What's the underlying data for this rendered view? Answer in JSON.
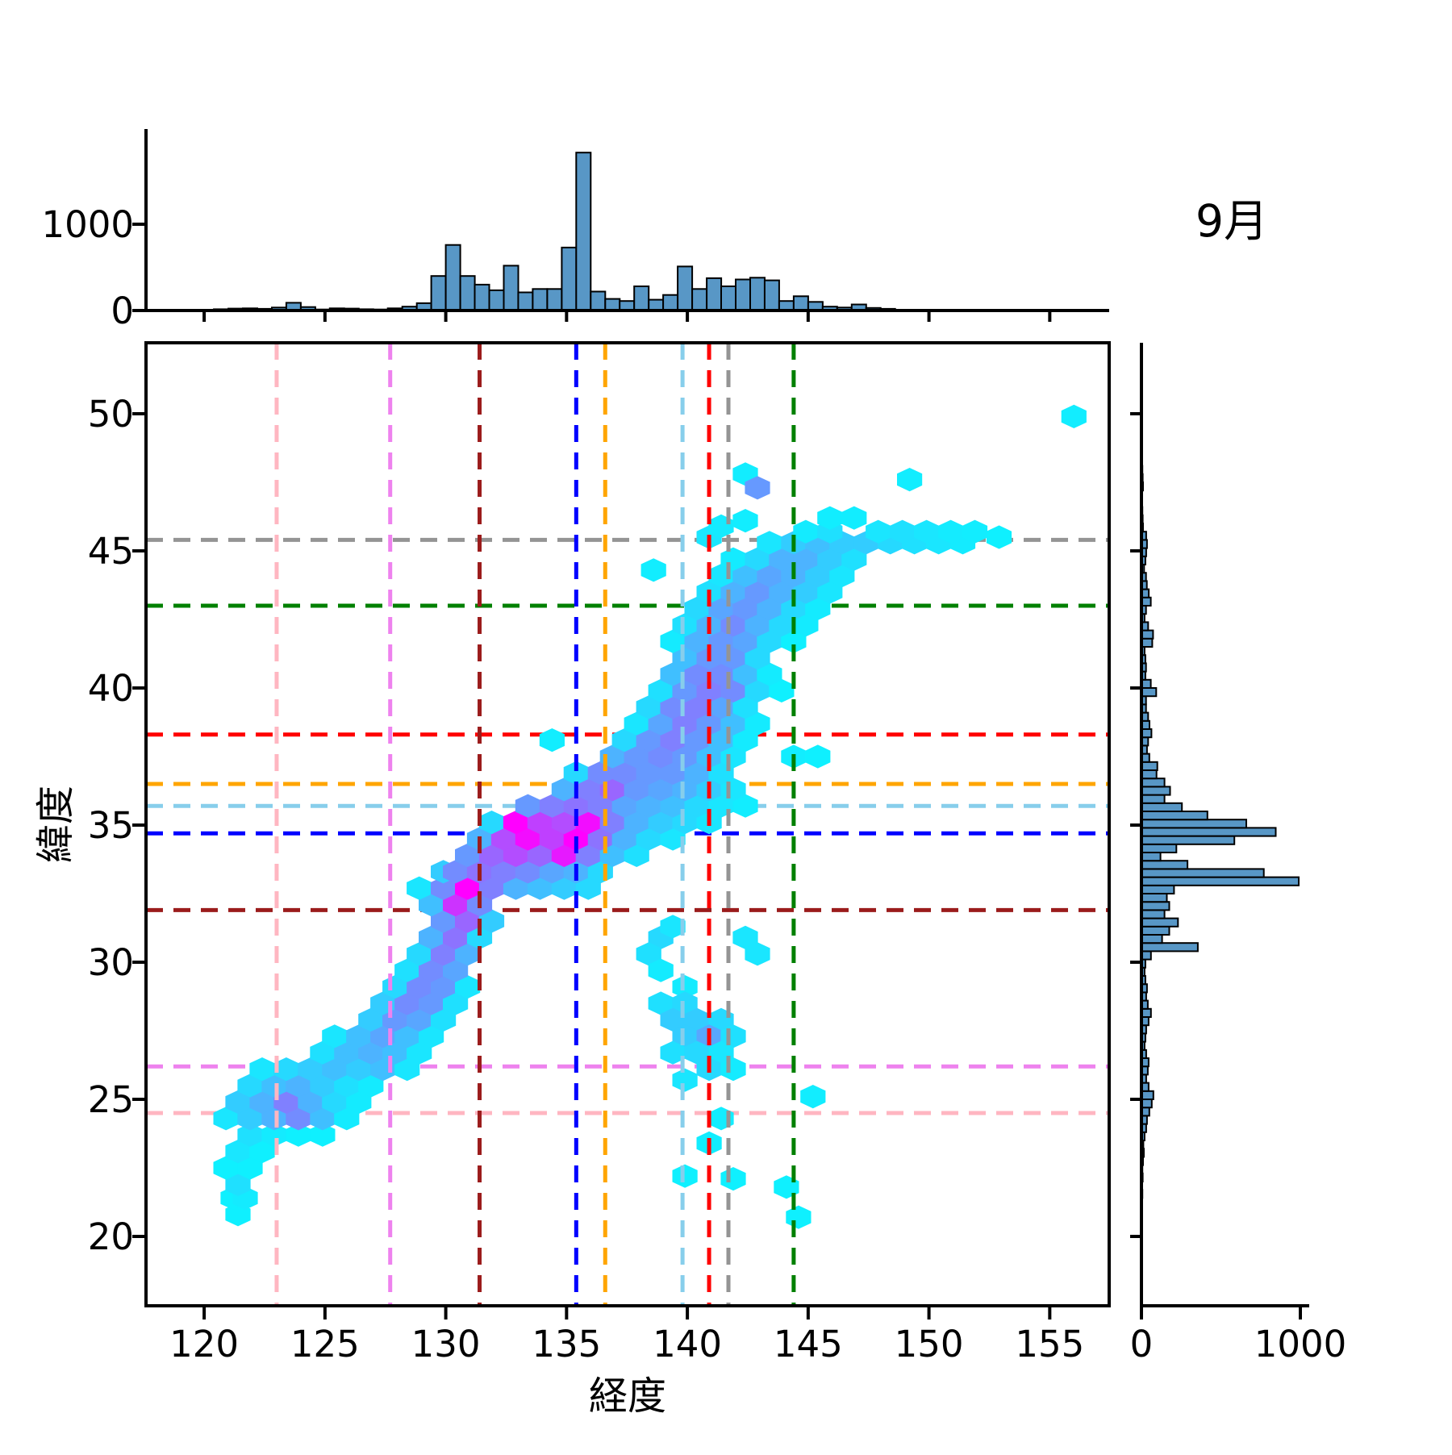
{
  "title": "9月",
  "axes": {
    "xlabel": "経度",
    "ylabel": "緯度"
  },
  "colors": {
    "hist_fill": "#5897C6",
    "hist_edge": "#000000",
    "spine": "#000000",
    "colormap": "cool"
  },
  "chart_data": {
    "type": "hexbin",
    "title": "9月",
    "xlabel": "経度",
    "ylabel": "緯度",
    "xlim": [
      117.6,
      157.45
    ],
    "ylim": [
      17.45,
      52.6
    ],
    "xticks": [
      120,
      125,
      130,
      135,
      140,
      145,
      150,
      155
    ],
    "yticks": [
      20,
      25,
      30,
      35,
      40,
      45,
      50
    ],
    "grid": false,
    "colormap": "cool",
    "hex_size": {
      "dlon": 1.0,
      "dlat": 0.615
    },
    "reference_lines": [
      {
        "id": "pink",
        "color": "#FFB6C1",
        "lon": 123.0,
        "lat": 24.5
      },
      {
        "id": "violet",
        "color": "#EE82EE",
        "lon": 127.7,
        "lat": 26.2
      },
      {
        "id": "darkred",
        "color": "#9B1C1C",
        "lon": 131.4,
        "lat": 31.9
      },
      {
        "id": "blue",
        "color": "#0000FF",
        "lon": 135.4,
        "lat": 34.7
      },
      {
        "id": "orange",
        "color": "#FFA500",
        "lon": 136.6,
        "lat": 36.5
      },
      {
        "id": "skyblue",
        "color": "#87CEEB",
        "lon": 139.8,
        "lat": 35.7
      },
      {
        "id": "red",
        "color": "#FF0000",
        "lon": 140.9,
        "lat": 38.3
      },
      {
        "id": "gray",
        "color": "#949494",
        "lon": 141.7,
        "lat": 45.4
      },
      {
        "id": "green",
        "color": "#008000",
        "lon": 144.4,
        "lat": 43.0
      }
    ],
    "marginal_top": {
      "type": "bar",
      "bin_start": 120.4,
      "bin_width": 0.6,
      "yticks": [
        0,
        1000
      ],
      "values": [
        15,
        22,
        25,
        20,
        35,
        90,
        40,
        12,
        25,
        22,
        15,
        12,
        25,
        45,
        85,
        400,
        760,
        400,
        300,
        235,
        520,
        210,
        250,
        250,
        730,
        1830,
        220,
        135,
        110,
        280,
        125,
        180,
        510,
        250,
        375,
        280,
        360,
        380,
        350,
        110,
        165,
        100,
        45,
        35,
        70,
        30,
        20
      ]
    },
    "marginal_right": {
      "type": "bar",
      "bin_start": 20.8,
      "bin_width": 0.3,
      "xticks": [
        0,
        1000
      ],
      "values": [
        0,
        4,
        6,
        0,
        8,
        6,
        10,
        15,
        12,
        20,
        30,
        35,
        50,
        65,
        75,
        45,
        30,
        40,
        45,
        30,
        20,
        25,
        30,
        45,
        60,
        40,
        30,
        35,
        25,
        20,
        25,
        60,
        355,
        130,
        175,
        230,
        145,
        175,
        160,
        205,
        990,
        770,
        290,
        120,
        220,
        585,
        845,
        660,
        415,
        255,
        145,
        180,
        145,
        95,
        100,
        50,
        35,
        42,
        63,
        51,
        42,
        29,
        29,
        93,
        59,
        25,
        29,
        25,
        20,
        68,
        73,
        42,
        20,
        29,
        59,
        46,
        34,
        29,
        17,
        25,
        30,
        35,
        30,
        10,
        8,
        6,
        0,
        0,
        10,
        8,
        6,
        0,
        0,
        0,
        0,
        0,
        0,
        4
      ]
    },
    "hexbin_cells": [
      [
        121.4,
        20.8,
        0.06
      ],
      [
        121.2,
        21.4,
        0.06
      ],
      [
        121.7,
        21.4,
        0.08
      ],
      [
        121.4,
        21.9,
        0.12
      ],
      [
        120.9,
        22.5,
        0.06
      ],
      [
        121.9,
        22.5,
        0.06
      ],
      [
        121.4,
        23.1,
        0.1
      ],
      [
        122.4,
        23.1,
        0.06
      ],
      [
        121.9,
        23.7,
        0.12
      ],
      [
        122.9,
        23.7,
        0.08
      ],
      [
        123.9,
        23.7,
        0.06
      ],
      [
        124.9,
        23.7,
        0.06
      ],
      [
        120.9,
        24.3,
        0.1
      ],
      [
        121.9,
        24.3,
        0.2
      ],
      [
        122.9,
        24.3,
        0.3
      ],
      [
        123.9,
        24.3,
        0.45
      ],
      [
        124.9,
        24.3,
        0.25
      ],
      [
        125.9,
        24.3,
        0.08
      ],
      [
        121.4,
        24.9,
        0.2
      ],
      [
        122.4,
        24.9,
        0.3
      ],
      [
        123.4,
        24.9,
        0.5
      ],
      [
        124.4,
        24.9,
        0.3
      ],
      [
        125.4,
        24.9,
        0.15
      ],
      [
        126.4,
        24.9,
        0.08
      ],
      [
        121.9,
        25.5,
        0.15
      ],
      [
        122.9,
        25.5,
        0.25
      ],
      [
        123.9,
        25.5,
        0.3
      ],
      [
        124.9,
        25.5,
        0.2
      ],
      [
        125.9,
        25.5,
        0.12
      ],
      [
        126.9,
        25.5,
        0.08
      ],
      [
        122.4,
        26.1,
        0.1
      ],
      [
        123.4,
        26.1,
        0.15
      ],
      [
        124.4,
        26.1,
        0.2
      ],
      [
        125.4,
        26.1,
        0.25
      ],
      [
        126.4,
        26.1,
        0.2
      ],
      [
        127.4,
        26.1,
        0.25
      ],
      [
        128.4,
        26.1,
        0.1
      ],
      [
        124.9,
        26.7,
        0.12
      ],
      [
        125.9,
        26.7,
        0.25
      ],
      [
        126.9,
        26.7,
        0.3
      ],
      [
        127.9,
        26.7,
        0.25
      ],
      [
        128.9,
        26.7,
        0.1
      ],
      [
        125.4,
        27.3,
        0.1
      ],
      [
        126.4,
        27.3,
        0.25
      ],
      [
        127.4,
        27.3,
        0.35
      ],
      [
        128.4,
        27.3,
        0.25
      ],
      [
        129.4,
        27.3,
        0.1
      ],
      [
        126.9,
        27.9,
        0.2
      ],
      [
        127.9,
        27.9,
        0.4
      ],
      [
        128.9,
        27.9,
        0.35
      ],
      [
        129.9,
        27.9,
        0.12
      ],
      [
        127.4,
        28.5,
        0.2
      ],
      [
        128.4,
        28.5,
        0.45
      ],
      [
        129.4,
        28.5,
        0.4
      ],
      [
        130.4,
        28.5,
        0.12
      ],
      [
        127.9,
        29.1,
        0.15
      ],
      [
        128.9,
        29.1,
        0.45
      ],
      [
        129.9,
        29.1,
        0.4
      ],
      [
        130.9,
        29.1,
        0.1
      ],
      [
        128.4,
        29.7,
        0.12
      ],
      [
        129.4,
        29.7,
        0.45
      ],
      [
        130.4,
        29.7,
        0.35
      ],
      [
        128.9,
        30.3,
        0.15
      ],
      [
        129.9,
        30.3,
        0.5
      ],
      [
        130.9,
        30.3,
        0.3
      ],
      [
        129.4,
        30.9,
        0.3
      ],
      [
        130.4,
        30.9,
        0.55
      ],
      [
        131.4,
        30.9,
        0.15
      ],
      [
        129.9,
        31.5,
        0.4
      ],
      [
        130.9,
        31.5,
        0.6
      ],
      [
        131.9,
        31.5,
        0.2
      ],
      [
        129.4,
        32.1,
        0.25
      ],
      [
        130.4,
        32.1,
        0.8
      ],
      [
        131.4,
        32.1,
        0.45
      ],
      [
        128.9,
        32.7,
        0.1
      ],
      [
        129.9,
        32.7,
        0.45
      ],
      [
        130.9,
        32.7,
        1.0
      ],
      [
        131.9,
        32.7,
        0.5
      ],
      [
        132.9,
        32.7,
        0.3
      ],
      [
        133.9,
        32.7,
        0.25
      ],
      [
        134.9,
        32.7,
        0.2
      ],
      [
        135.9,
        32.7,
        0.15
      ],
      [
        129.9,
        33.3,
        0.2
      ],
      [
        130.4,
        33.3,
        0.45
      ],
      [
        131.4,
        33.3,
        0.55
      ],
      [
        132.4,
        33.3,
        0.5
      ],
      [
        133.4,
        33.3,
        0.45
      ],
      [
        134.4,
        33.3,
        0.35
      ],
      [
        135.4,
        33.3,
        0.3
      ],
      [
        136.4,
        33.3,
        0.15
      ],
      [
        130.9,
        33.9,
        0.4
      ],
      [
        131.9,
        33.9,
        0.6
      ],
      [
        132.9,
        33.9,
        0.7
      ],
      [
        133.9,
        33.9,
        0.6
      ],
      [
        134.9,
        33.9,
        0.9
      ],
      [
        135.9,
        33.9,
        0.5
      ],
      [
        136.9,
        33.9,
        0.25
      ],
      [
        137.9,
        33.9,
        0.12
      ],
      [
        131.4,
        34.5,
        0.3
      ],
      [
        132.4,
        34.5,
        0.7
      ],
      [
        133.4,
        34.5,
        0.95
      ],
      [
        134.4,
        34.5,
        0.75
      ],
      [
        135.4,
        34.5,
        1.0
      ],
      [
        136.4,
        34.5,
        0.55
      ],
      [
        137.4,
        34.5,
        0.3
      ],
      [
        138.4,
        34.5,
        0.15
      ],
      [
        139.4,
        34.5,
        0.1
      ],
      [
        131.9,
        35.1,
        0.15
      ],
      [
        132.9,
        35.1,
        1.0
      ],
      [
        133.9,
        35.1,
        0.75
      ],
      [
        134.9,
        35.1,
        0.7
      ],
      [
        135.9,
        35.1,
        0.95
      ],
      [
        136.9,
        35.1,
        0.5
      ],
      [
        137.9,
        35.1,
        0.3
      ],
      [
        138.9,
        35.1,
        0.2
      ],
      [
        139.9,
        35.1,
        0.15
      ],
      [
        140.9,
        35.1,
        0.1
      ],
      [
        133.4,
        35.7,
        0.4
      ],
      [
        134.4,
        35.7,
        0.5
      ],
      [
        135.4,
        35.7,
        0.55
      ],
      [
        136.4,
        35.7,
        0.5
      ],
      [
        137.4,
        35.7,
        0.35
      ],
      [
        138.4,
        35.7,
        0.3
      ],
      [
        139.4,
        35.7,
        0.25
      ],
      [
        140.4,
        35.7,
        0.15
      ],
      [
        141.4,
        35.7,
        0.1
      ],
      [
        142.4,
        35.7,
        0.07
      ],
      [
        134.9,
        36.3,
        0.3
      ],
      [
        135.9,
        36.3,
        0.5
      ],
      [
        136.9,
        36.3,
        0.6
      ],
      [
        137.9,
        36.3,
        0.4
      ],
      [
        138.9,
        36.3,
        0.35
      ],
      [
        139.9,
        36.3,
        0.3
      ],
      [
        140.9,
        36.3,
        0.2
      ],
      [
        141.9,
        36.3,
        0.1
      ],
      [
        135.4,
        36.9,
        0.15
      ],
      [
        136.4,
        36.9,
        0.45
      ],
      [
        137.4,
        36.9,
        0.45
      ],
      [
        138.4,
        36.9,
        0.4
      ],
      [
        139.4,
        36.9,
        0.4
      ],
      [
        140.4,
        36.9,
        0.3
      ],
      [
        141.4,
        36.9,
        0.12
      ],
      [
        136.9,
        37.5,
        0.3
      ],
      [
        137.9,
        37.5,
        0.4
      ],
      [
        138.9,
        37.5,
        0.45
      ],
      [
        139.9,
        37.5,
        0.4
      ],
      [
        140.9,
        37.5,
        0.25
      ],
      [
        141.9,
        37.5,
        0.1
      ],
      [
        144.4,
        37.5,
        0.07
      ],
      [
        145.4,
        37.5,
        0.06
      ],
      [
        134.4,
        38.1,
        0.07
      ],
      [
        137.4,
        38.1,
        0.15
      ],
      [
        138.4,
        38.1,
        0.4
      ],
      [
        139.4,
        38.1,
        0.5
      ],
      [
        140.4,
        38.1,
        0.4
      ],
      [
        141.4,
        38.1,
        0.25
      ],
      [
        142.4,
        38.1,
        0.08
      ],
      [
        137.9,
        38.7,
        0.1
      ],
      [
        138.9,
        38.7,
        0.35
      ],
      [
        139.9,
        38.7,
        0.5
      ],
      [
        140.9,
        38.7,
        0.4
      ],
      [
        141.9,
        38.7,
        0.25
      ],
      [
        142.9,
        38.7,
        0.08
      ],
      [
        138.4,
        39.3,
        0.15
      ],
      [
        139.4,
        39.3,
        0.45
      ],
      [
        140.4,
        39.3,
        0.5
      ],
      [
        141.4,
        39.3,
        0.35
      ],
      [
        142.4,
        39.3,
        0.12
      ],
      [
        138.9,
        39.9,
        0.12
      ],
      [
        139.9,
        39.9,
        0.4
      ],
      [
        140.9,
        39.9,
        0.5
      ],
      [
        141.9,
        39.9,
        0.45
      ],
      [
        142.9,
        39.9,
        0.15
      ],
      [
        143.9,
        39.9,
        0.06
      ],
      [
        139.4,
        40.5,
        0.25
      ],
      [
        140.4,
        40.5,
        0.45
      ],
      [
        141.4,
        40.5,
        0.45
      ],
      [
        142.4,
        40.5,
        0.25
      ],
      [
        143.4,
        40.5,
        0.08
      ],
      [
        139.9,
        41.1,
        0.25
      ],
      [
        140.9,
        41.1,
        0.4
      ],
      [
        141.9,
        41.1,
        0.4
      ],
      [
        142.9,
        41.1,
        0.15
      ],
      [
        139.4,
        41.7,
        0.08
      ],
      [
        140.4,
        41.7,
        0.3
      ],
      [
        141.4,
        41.7,
        0.4
      ],
      [
        142.4,
        41.7,
        0.35
      ],
      [
        143.4,
        41.7,
        0.15
      ],
      [
        144.4,
        41.7,
        0.06
      ],
      [
        139.9,
        42.3,
        0.12
      ],
      [
        140.9,
        42.3,
        0.3
      ],
      [
        141.9,
        42.3,
        0.45
      ],
      [
        142.9,
        42.3,
        0.3
      ],
      [
        143.9,
        42.3,
        0.15
      ],
      [
        144.9,
        42.3,
        0.08
      ],
      [
        140.4,
        42.9,
        0.15
      ],
      [
        141.4,
        42.9,
        0.35
      ],
      [
        142.4,
        42.9,
        0.4
      ],
      [
        143.4,
        42.9,
        0.3
      ],
      [
        144.4,
        42.9,
        0.15
      ],
      [
        145.4,
        42.9,
        0.08
      ],
      [
        140.9,
        43.5,
        0.12
      ],
      [
        141.9,
        43.5,
        0.3
      ],
      [
        142.9,
        43.5,
        0.4
      ],
      [
        143.9,
        43.5,
        0.3
      ],
      [
        144.9,
        43.5,
        0.2
      ],
      [
        145.9,
        43.5,
        0.1
      ],
      [
        138.6,
        44.3,
        0.07
      ],
      [
        141.4,
        44.1,
        0.1
      ],
      [
        142.4,
        44.1,
        0.25
      ],
      [
        143.4,
        44.1,
        0.35
      ],
      [
        144.4,
        44.1,
        0.3
      ],
      [
        145.4,
        44.1,
        0.2
      ],
      [
        146.4,
        44.1,
        0.1
      ],
      [
        141.9,
        44.7,
        0.08
      ],
      [
        142.9,
        44.7,
        0.15
      ],
      [
        143.9,
        44.7,
        0.3
      ],
      [
        144.9,
        44.7,
        0.3
      ],
      [
        145.9,
        44.7,
        0.2
      ],
      [
        146.9,
        44.7,
        0.12
      ],
      [
        140.9,
        45.5,
        0.1
      ],
      [
        143.4,
        45.3,
        0.1
      ],
      [
        144.4,
        45.3,
        0.2
      ],
      [
        145.4,
        45.3,
        0.25
      ],
      [
        146.4,
        45.3,
        0.2
      ],
      [
        147.4,
        45.3,
        0.2
      ],
      [
        148.4,
        45.3,
        0.15
      ],
      [
        149.4,
        45.3,
        0.12
      ],
      [
        150.4,
        45.3,
        0.1
      ],
      [
        151.4,
        45.3,
        0.08
      ],
      [
        141.4,
        45.9,
        0.08
      ],
      [
        142.4,
        46.1,
        0.07
      ],
      [
        144.9,
        45.7,
        0.08
      ],
      [
        145.9,
        45.7,
        0.12
      ],
      [
        147.9,
        45.7,
        0.1
      ],
      [
        148.9,
        45.7,
        0.12
      ],
      [
        149.9,
        45.7,
        0.1
      ],
      [
        150.9,
        45.7,
        0.08
      ],
      [
        151.9,
        45.7,
        0.07
      ],
      [
        152.9,
        45.5,
        0.06
      ],
      [
        142.4,
        47.8,
        0.07
      ],
      [
        142.9,
        47.3,
        0.4
      ],
      [
        145.9,
        46.2,
        0.07
      ],
      [
        146.9,
        46.2,
        0.07
      ],
      [
        149.2,
        47.6,
        0.07
      ],
      [
        156.0,
        49.9,
        0.07
      ],
      [
        138.9,
        30.9,
        0.15
      ],
      [
        139.4,
        31.3,
        0.1
      ],
      [
        138.4,
        30.3,
        0.12
      ],
      [
        138.9,
        29.7,
        0.08
      ],
      [
        139.9,
        29.1,
        0.08
      ],
      [
        142.4,
        30.9,
        0.1
      ],
      [
        142.9,
        30.3,
        0.1
      ],
      [
        138.9,
        28.5,
        0.12
      ],
      [
        139.9,
        28.5,
        0.15
      ],
      [
        139.4,
        27.9,
        0.2
      ],
      [
        140.4,
        27.9,
        0.2
      ],
      [
        141.4,
        27.9,
        0.15
      ],
      [
        139.9,
        27.3,
        0.2
      ],
      [
        140.9,
        27.3,
        0.35
      ],
      [
        141.9,
        27.3,
        0.12
      ],
      [
        139.4,
        26.7,
        0.12
      ],
      [
        140.4,
        26.7,
        0.15
      ],
      [
        141.4,
        26.7,
        0.1
      ],
      [
        140.9,
        26.1,
        0.15
      ],
      [
        139.9,
        25.7,
        0.1
      ],
      [
        141.9,
        26.1,
        0.08
      ],
      [
        145.2,
        25.1,
        0.07
      ],
      [
        141.4,
        24.3,
        0.07
      ],
      [
        140.9,
        23.4,
        0.07
      ],
      [
        139.9,
        22.2,
        0.06
      ],
      [
        141.9,
        22.1,
        0.06
      ],
      [
        144.1,
        21.8,
        0.06
      ],
      [
        144.6,
        20.7,
        0.06
      ]
    ]
  }
}
